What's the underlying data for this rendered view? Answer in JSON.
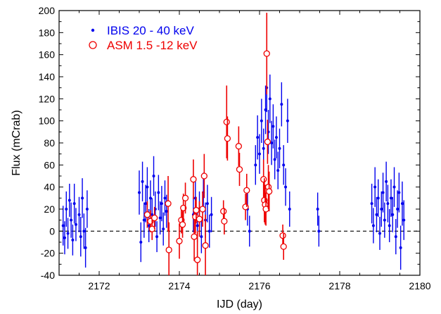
{
  "chart_data": {
    "type": "scatter",
    "xlabel": "IJD (day)",
    "ylabel": "Flux (mCrab)",
    "xlim": [
      2171,
      2180
    ],
    "ylim": [
      -40,
      200
    ],
    "x_ticks": [
      2172,
      2174,
      2176,
      2178,
      2180
    ],
    "y_ticks": [
      -40,
      -20,
      0,
      20,
      40,
      60,
      80,
      100,
      120,
      140,
      160,
      180,
      200
    ],
    "grid": false,
    "legend": "top-left",
    "reference_line": {
      "y": 0,
      "style": "dashed"
    },
    "series": [
      {
        "name": "IBIS 20 - 40 keV",
        "color": "#0000ee",
        "marker": "dot",
        "points": [
          {
            "x": 2171.1,
            "y": 5,
            "err": 18
          },
          {
            "x": 2171.14,
            "y": -6,
            "err": 15
          },
          {
            "x": 2171.18,
            "y": 20,
            "err": 16
          },
          {
            "x": 2171.22,
            "y": -2,
            "err": 14
          },
          {
            "x": 2171.26,
            "y": 28,
            "err": 15
          },
          {
            "x": 2171.3,
            "y": 10,
            "err": 16
          },
          {
            "x": 2171.34,
            "y": -8,
            "err": 14
          },
          {
            "x": 2171.38,
            "y": 25,
            "err": 18
          },
          {
            "x": 2171.42,
            "y": 6,
            "err": 15
          },
          {
            "x": 2171.5,
            "y": 15,
            "err": 16
          },
          {
            "x": 2171.54,
            "y": -5,
            "err": 18
          },
          {
            "x": 2171.58,
            "y": 30,
            "err": 18
          },
          {
            "x": 2171.62,
            "y": 0,
            "err": 16
          },
          {
            "x": 2171.66,
            "y": -15,
            "err": 18
          },
          {
            "x": 2171.7,
            "y": 20,
            "err": 17
          },
          {
            "x": 2173.0,
            "y": 35,
            "err": 20
          },
          {
            "x": 2173.04,
            "y": -10,
            "err": 18
          },
          {
            "x": 2173.08,
            "y": 45,
            "err": 18
          },
          {
            "x": 2173.12,
            "y": 10,
            "err": 16
          },
          {
            "x": 2173.16,
            "y": 25,
            "err": 17
          },
          {
            "x": 2173.2,
            "y": 40,
            "err": 18
          },
          {
            "x": 2173.24,
            "y": 5,
            "err": 15
          },
          {
            "x": 2173.28,
            "y": 30,
            "err": 16
          },
          {
            "x": 2173.32,
            "y": 15,
            "err": 15
          },
          {
            "x": 2173.36,
            "y": 50,
            "err": 18
          },
          {
            "x": 2173.4,
            "y": 20,
            "err": 16
          },
          {
            "x": 2173.44,
            "y": -5,
            "err": 14
          },
          {
            "x": 2173.48,
            "y": 35,
            "err": 16
          },
          {
            "x": 2173.52,
            "y": 12,
            "err": 15
          },
          {
            "x": 2173.56,
            "y": 25,
            "err": 16
          },
          {
            "x": 2173.6,
            "y": 2,
            "err": 15
          },
          {
            "x": 2173.64,
            "y": 30,
            "err": 16
          },
          {
            "x": 2173.68,
            "y": 18,
            "err": 15
          },
          {
            "x": 2174.35,
            "y": 15,
            "err": 16
          },
          {
            "x": 2174.4,
            "y": 30,
            "err": 17
          },
          {
            "x": 2174.45,
            "y": 5,
            "err": 15
          },
          {
            "x": 2174.5,
            "y": 20,
            "err": 16
          },
          {
            "x": 2174.55,
            "y": -5,
            "err": 15
          },
          {
            "x": 2174.6,
            "y": 35,
            "err": 18
          },
          {
            "x": 2174.65,
            "y": 10,
            "err": 16
          },
          {
            "x": 2174.7,
            "y": 25,
            "err": 17
          },
          {
            "x": 2174.75,
            "y": 0,
            "err": 15
          },
          {
            "x": 2174.8,
            "y": 15,
            "err": 16
          },
          {
            "x": 2175.7,
            "y": 20,
            "err": 15
          },
          {
            "x": 2175.75,
            "y": 0,
            "err": 14
          },
          {
            "x": 2175.9,
            "y": 60,
            "err": 18
          },
          {
            "x": 2175.95,
            "y": 85,
            "err": 20
          },
          {
            "x": 2176.0,
            "y": 70,
            "err": 18
          },
          {
            "x": 2176.05,
            "y": 100,
            "err": 20
          },
          {
            "x": 2176.1,
            "y": 75,
            "err": 18
          },
          {
            "x": 2176.15,
            "y": 110,
            "err": 22
          },
          {
            "x": 2176.18,
            "y": 130,
            "err": 22
          },
          {
            "x": 2176.22,
            "y": 90,
            "err": 20
          },
          {
            "x": 2176.26,
            "y": 120,
            "err": 22
          },
          {
            "x": 2176.3,
            "y": 80,
            "err": 20
          },
          {
            "x": 2176.34,
            "y": 95,
            "err": 20
          },
          {
            "x": 2176.38,
            "y": 65,
            "err": 18
          },
          {
            "x": 2176.42,
            "y": 85,
            "err": 19
          },
          {
            "x": 2176.46,
            "y": 55,
            "err": 17
          },
          {
            "x": 2176.5,
            "y": 75,
            "err": 18
          },
          {
            "x": 2176.55,
            "y": 115,
            "err": 20
          },
          {
            "x": 2176.6,
            "y": 60,
            "err": 18
          },
          {
            "x": 2176.65,
            "y": 40,
            "err": 17
          },
          {
            "x": 2176.7,
            "y": 100,
            "err": 20
          },
          {
            "x": 2176.75,
            "y": 20,
            "err": 16
          },
          {
            "x": 2177.45,
            "y": 20,
            "err": 15
          },
          {
            "x": 2177.48,
            "y": 0,
            "err": 14
          },
          {
            "x": 2178.8,
            "y": 25,
            "err": 18
          },
          {
            "x": 2178.84,
            "y": 5,
            "err": 16
          },
          {
            "x": 2178.88,
            "y": 40,
            "err": 18
          },
          {
            "x": 2178.92,
            "y": 15,
            "err": 16
          },
          {
            "x": 2178.96,
            "y": 30,
            "err": 17
          },
          {
            "x": 2179.0,
            "y": -2,
            "err": 15
          },
          {
            "x": 2179.04,
            "y": 20,
            "err": 16
          },
          {
            "x": 2179.08,
            "y": 35,
            "err": 18
          },
          {
            "x": 2179.12,
            "y": 10,
            "err": 16
          },
          {
            "x": 2179.16,
            "y": 45,
            "err": 18
          },
          {
            "x": 2179.2,
            "y": 25,
            "err": 17
          },
          {
            "x": 2179.24,
            "y": 5,
            "err": 15
          },
          {
            "x": 2179.28,
            "y": 30,
            "err": 17
          },
          {
            "x": 2179.32,
            "y": 15,
            "err": 16
          },
          {
            "x": 2179.36,
            "y": 40,
            "err": 18
          },
          {
            "x": 2179.4,
            "y": -5,
            "err": 16
          },
          {
            "x": 2179.44,
            "y": 20,
            "err": 17
          },
          {
            "x": 2179.48,
            "y": 35,
            "err": 18
          },
          {
            "x": 2179.52,
            "y": -15,
            "err": 20
          },
          {
            "x": 2179.56,
            "y": 25,
            "err": 20
          },
          {
            "x": 2179.6,
            "y": 10,
            "err": 18
          }
        ]
      },
      {
        "name": "ASM 1.5 -12 keV",
        "color": "#ee0000",
        "marker": "open-circle",
        "points": [
          {
            "x": 2173.2,
            "y": 15,
            "err": 12
          },
          {
            "x": 2173.28,
            "y": 9,
            "err": 10
          },
          {
            "x": 2173.32,
            "y": 2,
            "err": 10
          },
          {
            "x": 2173.38,
            "y": 12,
            "err": 10
          },
          {
            "x": 2173.72,
            "y": 25,
            "err": 25
          },
          {
            "x": 2173.74,
            "y": -17,
            "err": 25
          },
          {
            "x": 2174.0,
            "y": -9,
            "err": 16
          },
          {
            "x": 2174.05,
            "y": 10,
            "err": 12
          },
          {
            "x": 2174.08,
            "y": 6,
            "err": 12
          },
          {
            "x": 2174.1,
            "y": 21,
            "err": 13
          },
          {
            "x": 2174.15,
            "y": 30,
            "err": 14
          },
          {
            "x": 2174.35,
            "y": 47,
            "err": 18
          },
          {
            "x": 2174.37,
            "y": -5,
            "err": 22
          },
          {
            "x": 2174.4,
            "y": 13,
            "err": 15
          },
          {
            "x": 2174.42,
            "y": 19,
            "err": 12
          },
          {
            "x": 2174.45,
            "y": -26,
            "err": 26
          },
          {
            "x": 2174.5,
            "y": 11,
            "err": 16
          },
          {
            "x": 2174.58,
            "y": 20,
            "err": 16
          },
          {
            "x": 2174.62,
            "y": 50,
            "err": 20
          },
          {
            "x": 2174.65,
            "y": -13,
            "err": 28
          },
          {
            "x": 2175.1,
            "y": 18,
            "err": 10
          },
          {
            "x": 2175.12,
            "y": 9,
            "err": 12
          },
          {
            "x": 2175.18,
            "y": 99,
            "err": 33
          },
          {
            "x": 2175.2,
            "y": 84,
            "err": 20
          },
          {
            "x": 2175.48,
            "y": 77,
            "err": 18
          },
          {
            "x": 2175.5,
            "y": 56,
            "err": 15
          },
          {
            "x": 2175.65,
            "y": 22,
            "err": 12
          },
          {
            "x": 2175.68,
            "y": 37,
            "err": 15
          },
          {
            "x": 2176.1,
            "y": 47,
            "err": 18
          },
          {
            "x": 2176.12,
            "y": 28,
            "err": 20
          },
          {
            "x": 2176.14,
            "y": 24,
            "err": 18
          },
          {
            "x": 2176.16,
            "y": 20,
            "err": 15
          },
          {
            "x": 2176.18,
            "y": 161,
            "err": 37
          },
          {
            "x": 2176.2,
            "y": 81,
            "err": 20
          },
          {
            "x": 2176.22,
            "y": 40,
            "err": 20
          },
          {
            "x": 2176.24,
            "y": 36,
            "err": 18
          },
          {
            "x": 2176.58,
            "y": -4,
            "err": 10
          },
          {
            "x": 2176.6,
            "y": -14,
            "err": 12
          }
        ]
      }
    ]
  }
}
